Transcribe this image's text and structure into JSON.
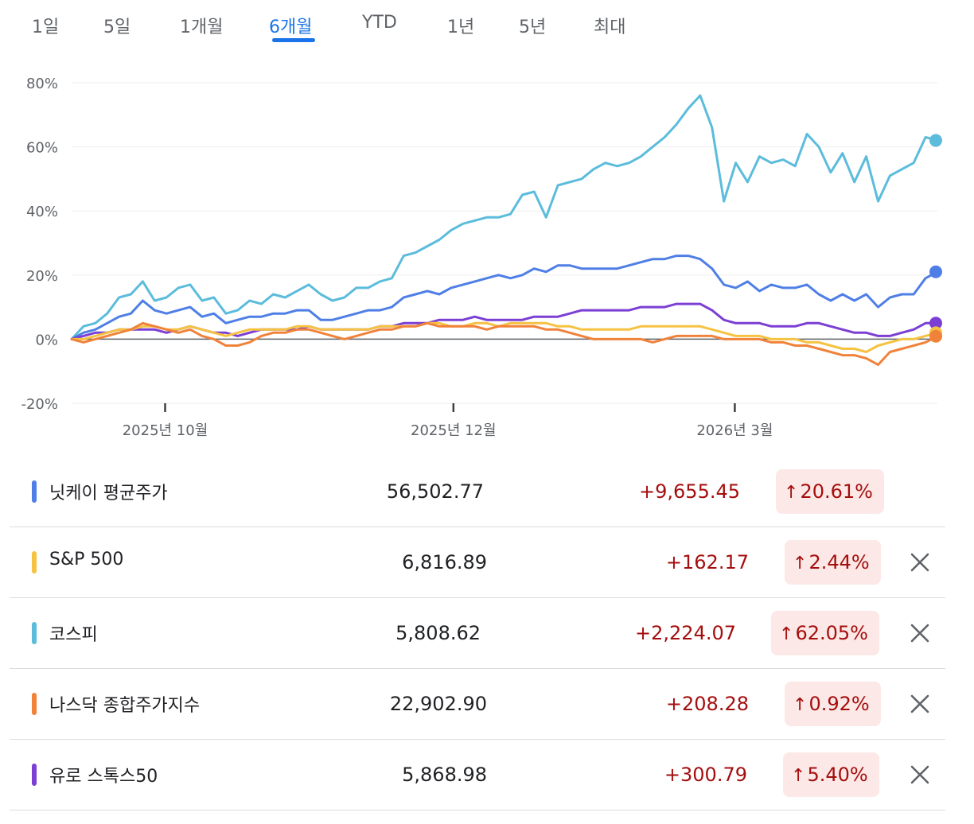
{
  "tabs": [
    {
      "label": "1일",
      "active": false
    },
    {
      "label": "5일",
      "active": false
    },
    {
      "label": "1개월",
      "active": false
    },
    {
      "label": "6개월",
      "active": true
    },
    {
      "label": "YTD",
      "active": false
    },
    {
      "label": "1년",
      "active": false
    },
    {
      "label": "5년",
      "active": false
    },
    {
      "label": "최대",
      "active": false
    }
  ],
  "chart_data": {
    "type": "line",
    "y_unit": "%",
    "ylim": [
      -20,
      80
    ],
    "y_ticks": [
      "80%",
      "60%",
      "40%",
      "20%",
      "0%",
      "-20%"
    ],
    "x_ticks": [
      "2025년 10월",
      "2025년 12월",
      "2026년 3월"
    ],
    "grid": true,
    "series": [
      {
        "name": "코스피",
        "color": "#5bbcdc",
        "values": [
          0,
          4,
          5,
          8,
          13,
          14,
          18,
          12,
          13,
          16,
          17,
          12,
          13,
          8,
          9,
          12,
          11,
          14,
          13,
          15,
          17,
          14,
          12,
          13,
          16,
          16,
          18,
          19,
          26,
          27,
          29,
          31,
          34,
          36,
          37,
          38,
          38,
          39,
          45,
          46,
          38,
          48,
          49,
          50,
          53,
          55,
          54,
          55,
          57,
          60,
          63,
          67,
          72,
          76,
          66,
          43,
          55,
          49,
          57,
          55,
          56,
          54,
          64,
          60,
          52,
          58,
          49,
          57,
          43,
          51,
          53,
          55,
          63,
          62
        ]
      },
      {
        "name": "닛케이 평균주가",
        "color": "#4f7fe6",
        "values": [
          0,
          2,
          3,
          5,
          7,
          8,
          12,
          9,
          8,
          9,
          10,
          7,
          8,
          5,
          6,
          7,
          7,
          8,
          8,
          9,
          9,
          6,
          6,
          7,
          8,
          9,
          9,
          10,
          13,
          14,
          15,
          14,
          16,
          17,
          18,
          19,
          20,
          19,
          20,
          22,
          21,
          23,
          23,
          22,
          22,
          22,
          22,
          23,
          24,
          25,
          25,
          26,
          26,
          25,
          22,
          17,
          16,
          18,
          15,
          17,
          16,
          16,
          17,
          14,
          12,
          14,
          12,
          14,
          10,
          13,
          14,
          14,
          19,
          21
        ]
      },
      {
        "name": "유로 스톡스50",
        "color": "#7b3fd4",
        "values": [
          0,
          1,
          2,
          2,
          3,
          3,
          3,
          3,
          2,
          3,
          4,
          3,
          2,
          2,
          1,
          2,
          3,
          3,
          3,
          3,
          4,
          3,
          3,
          3,
          3,
          3,
          4,
          4,
          5,
          5,
          5,
          6,
          6,
          6,
          7,
          6,
          6,
          6,
          6,
          7,
          7,
          7,
          8,
          9,
          9,
          9,
          9,
          9,
          10,
          10,
          10,
          11,
          11,
          11,
          9,
          6,
          5,
          5,
          5,
          4,
          4,
          4,
          5,
          5,
          4,
          3,
          2,
          2,
          1,
          1,
          2,
          3,
          5,
          5
        ]
      },
      {
        "name": "S&P 500",
        "color": "#f5c242",
        "values": [
          0,
          0,
          1,
          2,
          3,
          3,
          4,
          4,
          3,
          3,
          4,
          3,
          2,
          1,
          2,
          3,
          3,
          3,
          3,
          4,
          4,
          3,
          3,
          3,
          3,
          3,
          4,
          4,
          4,
          4,
          5,
          5,
          4,
          4,
          5,
          5,
          4,
          5,
          5,
          5,
          5,
          4,
          4,
          3,
          3,
          3,
          3,
          3,
          4,
          4,
          4,
          4,
          4,
          4,
          3,
          2,
          1,
          1,
          1,
          0,
          0,
          0,
          -1,
          -1,
          -2,
          -3,
          -3,
          -4,
          -2,
          -1,
          0,
          0,
          1,
          2
        ]
      },
      {
        "name": "나스닥 종합주가지수",
        "color": "#f0823a",
        "values": [
          0,
          -1,
          0,
          1,
          2,
          3,
          5,
          4,
          3,
          2,
          3,
          1,
          0,
          -2,
          -2,
          -1,
          1,
          2,
          2,
          3,
          3,
          2,
          1,
          0,
          1,
          2,
          3,
          3,
          4,
          4,
          5,
          4,
          4,
          4,
          4,
          3,
          4,
          4,
          4,
          4,
          3,
          3,
          2,
          1,
          0,
          0,
          0,
          0,
          0,
          -1,
          0,
          1,
          1,
          1,
          1,
          0,
          0,
          0,
          0,
          -1,
          -1,
          -2,
          -2,
          -3,
          -4,
          -5,
          -5,
          -6,
          -8,
          -4,
          -3,
          -2,
          -1,
          0.9
        ]
      }
    ]
  },
  "rows": [
    {
      "name": "닛케이 평균주가",
      "color": "#4f7fe6",
      "price": "56,502.77",
      "change": "+9,655.45",
      "pct": "20.61%",
      "closable": false
    },
    {
      "name": "S&P 500",
      "color": "#f5c242",
      "price": "6,816.89",
      "change": "+162.17",
      "pct": "2.44%",
      "closable": true
    },
    {
      "name": "코스피",
      "color": "#5bbcdc",
      "price": "5,808.62",
      "change": "+2,224.07",
      "pct": "62.05%",
      "closable": true
    },
    {
      "name": "나스닥 종합주가지수",
      "color": "#f0823a",
      "price": "22,902.90",
      "change": "+208.28",
      "pct": "0.92%",
      "closable": true
    },
    {
      "name": "유로 스톡스50",
      "color": "#7b3fd4",
      "price": "5,868.98",
      "change": "+300.79",
      "pct": "5.40%",
      "closable": true
    }
  ],
  "icons": {
    "up_arrow": "arrow-up-icon",
    "close": "close-icon"
  }
}
